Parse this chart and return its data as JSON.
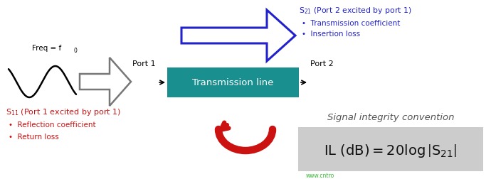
{
  "bg_color": "#ffffff",
  "sine_color": "#000000",
  "tline_bg": "#1a8f8f",
  "tline_text_color": "#ffffff",
  "tline_label": "Transmission line",
  "port1_label": "Port 1",
  "port2_label": "Port 2",
  "s21_color": "#2222cc",
  "s21_line1": "S$_{21}$ (Port 2 excited by port 1)",
  "s21_bullet1": "•  Transmission coefficient",
  "s21_bullet2": "•  Insertion loss",
  "s11_color": "#cc1111",
  "s11_line1": "S$_{11}$ (Port 1 excited by port 1)",
  "s11_bullet1": "•  Reflection coefficient",
  "s11_bullet2": "•  Return loss",
  "arrow_blue": "#2222cc",
  "arrow_red": "#cc1111",
  "arrow_gray": "#888888",
  "sig_title": "Signal integrity convention",
  "sig_title_color": "#555555",
  "formula_bg": "#cccccc",
  "formula_color": "#111111",
  "watermark_color": "#00aa00",
  "freq_label": "Freq = f",
  "freq_sub": "0"
}
